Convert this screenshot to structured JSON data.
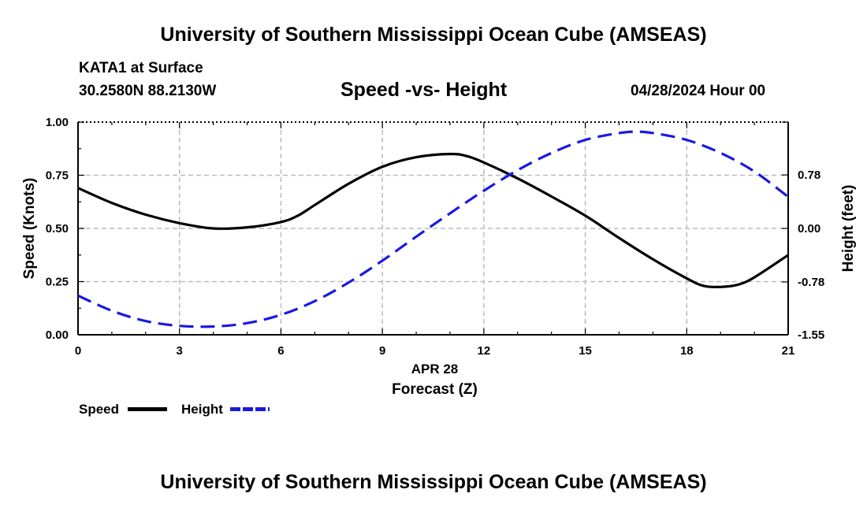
{
  "page": {
    "top_title": "University of Southern Mississippi Ocean Cube (AMSEAS)",
    "bottom_title": "University of Southern Mississippi Ocean Cube (AMSEAS)",
    "station": "KATA1 at Surface",
    "coordinates": "30.2580N  88.2130W",
    "plot_title": "Speed -vs- Height",
    "timestamp": "04/28/2024 Hour 00"
  },
  "legend": {
    "speed_label": "Speed",
    "height_label": "Height"
  },
  "colors": {
    "speed": "#000000",
    "height": "#1a1ae0",
    "grid": "#bbbbbb"
  },
  "chart_data": {
    "type": "line",
    "title": "Speed -vs- Height",
    "xlabel": "Forecast (Z)",
    "x_sublabel": "APR 28",
    "ylabel_left": "Speed (Knots)",
    "ylabel_right": "Height (feet)",
    "xlim": [
      0,
      21
    ],
    "ylim_left": [
      0,
      1
    ],
    "ylim_right": [
      -1.55,
      1.55
    ],
    "x_ticks": [
      0,
      3,
      6,
      9,
      12,
      15,
      18,
      21
    ],
    "y_ticks_left": [
      0.0,
      0.25,
      0.5,
      0.75,
      1.0
    ],
    "y_tick_labels_left": [
      "0.00",
      "0.25",
      "0.50",
      "0.75",
      "1.00"
    ],
    "y_ticks_right": [
      -1.55,
      -0.78,
      0.0,
      0.78
    ],
    "y_tick_labels_right": [
      "-1.55",
      "-0.78",
      "0.00",
      "0.78"
    ],
    "grid": true,
    "legend_position": "bottom-left",
    "series": [
      {
        "name": "Speed",
        "axis": "left",
        "style": "solid",
        "x": [
          0,
          1,
          2,
          3,
          4,
          5,
          6,
          6.5,
          7,
          8,
          9,
          10,
          11,
          11.5,
          12,
          13,
          14,
          15,
          16,
          17,
          18,
          18.5,
          19,
          19.5,
          20,
          21
        ],
        "y": [
          0.69,
          0.62,
          0.565,
          0.525,
          0.5,
          0.505,
          0.53,
          0.56,
          0.61,
          0.71,
          0.79,
          0.835,
          0.85,
          0.84,
          0.81,
          0.735,
          0.65,
          0.56,
          0.455,
          0.355,
          0.265,
          0.23,
          0.225,
          0.235,
          0.27,
          0.375
        ]
      },
      {
        "name": "Height",
        "axis": "right",
        "style": "dashed",
        "x": [
          0,
          1,
          2,
          3,
          4,
          5,
          6,
          7,
          8,
          9,
          10,
          11,
          12,
          13,
          14,
          15,
          16,
          16.5,
          17,
          18,
          19,
          20,
          21
        ],
        "y": [
          -0.98,
          -1.2,
          -1.35,
          -1.42,
          -1.43,
          -1.38,
          -1.26,
          -1.06,
          -0.79,
          -0.47,
          -0.12,
          0.22,
          0.55,
          0.85,
          1.1,
          1.29,
          1.39,
          1.41,
          1.39,
          1.29,
          1.1,
          0.83,
          0.46
        ]
      }
    ]
  }
}
